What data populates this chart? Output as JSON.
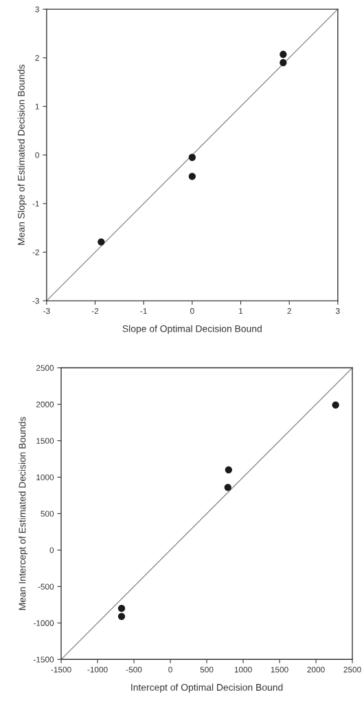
{
  "chart_data": [
    {
      "type": "scatter",
      "xlabel": "Slope of Optimal Decision Bound",
      "ylabel": "Mean Slope of Estimated Decision Bounds",
      "marker": "circle",
      "series": [
        {
          "color": "#1a1a1a",
          "x": [
            1.875,
            1.875,
            0,
            0,
            -1.875
          ],
          "values": [
            2.07,
            1.9,
            -0.05,
            -0.44,
            -1.79
          ]
        },
        {
          "type": "line",
          "color": "#808080",
          "marker": "none",
          "x": [
            -3,
            3
          ],
          "values": [
            -3,
            3
          ]
        }
      ],
      "xlim": [
        -3,
        3
      ],
      "ylim": [
        -3,
        3
      ],
      "xticks": [
        -3,
        -2,
        -1,
        0,
        1,
        2,
        3
      ],
      "yticks": [
        -3,
        -2,
        -1,
        0,
        1,
        2,
        3
      ]
    },
    {
      "type": "scatter",
      "xlabel": "Intercept of Optimal Decision Bound",
      "ylabel": "Mean Intercept of Estimated Decision Bounds",
      "marker": "circle",
      "series": [
        {
          "color": "#1a1a1a",
          "x": [
            2270,
            800,
            790,
            -670,
            -670
          ],
          "values": [
            1990,
            1100,
            860,
            -800,
            -910
          ]
        },
        {
          "type": "line",
          "color": "#808080",
          "marker": "none",
          "x": [
            -1500,
            2500
          ],
          "values": [
            -1500,
            2500
          ]
        }
      ],
      "xlim": [
        -1500,
        2500
      ],
      "ylim": [
        -1500,
        2500
      ],
      "xticks": [
        -1500,
        -1000,
        -500,
        0,
        500,
        1000,
        1500,
        2000,
        2500
      ],
      "yticks": [
        -1500,
        -1000,
        -500,
        0,
        500,
        1000,
        1500,
        2000,
        2500
      ]
    }
  ]
}
